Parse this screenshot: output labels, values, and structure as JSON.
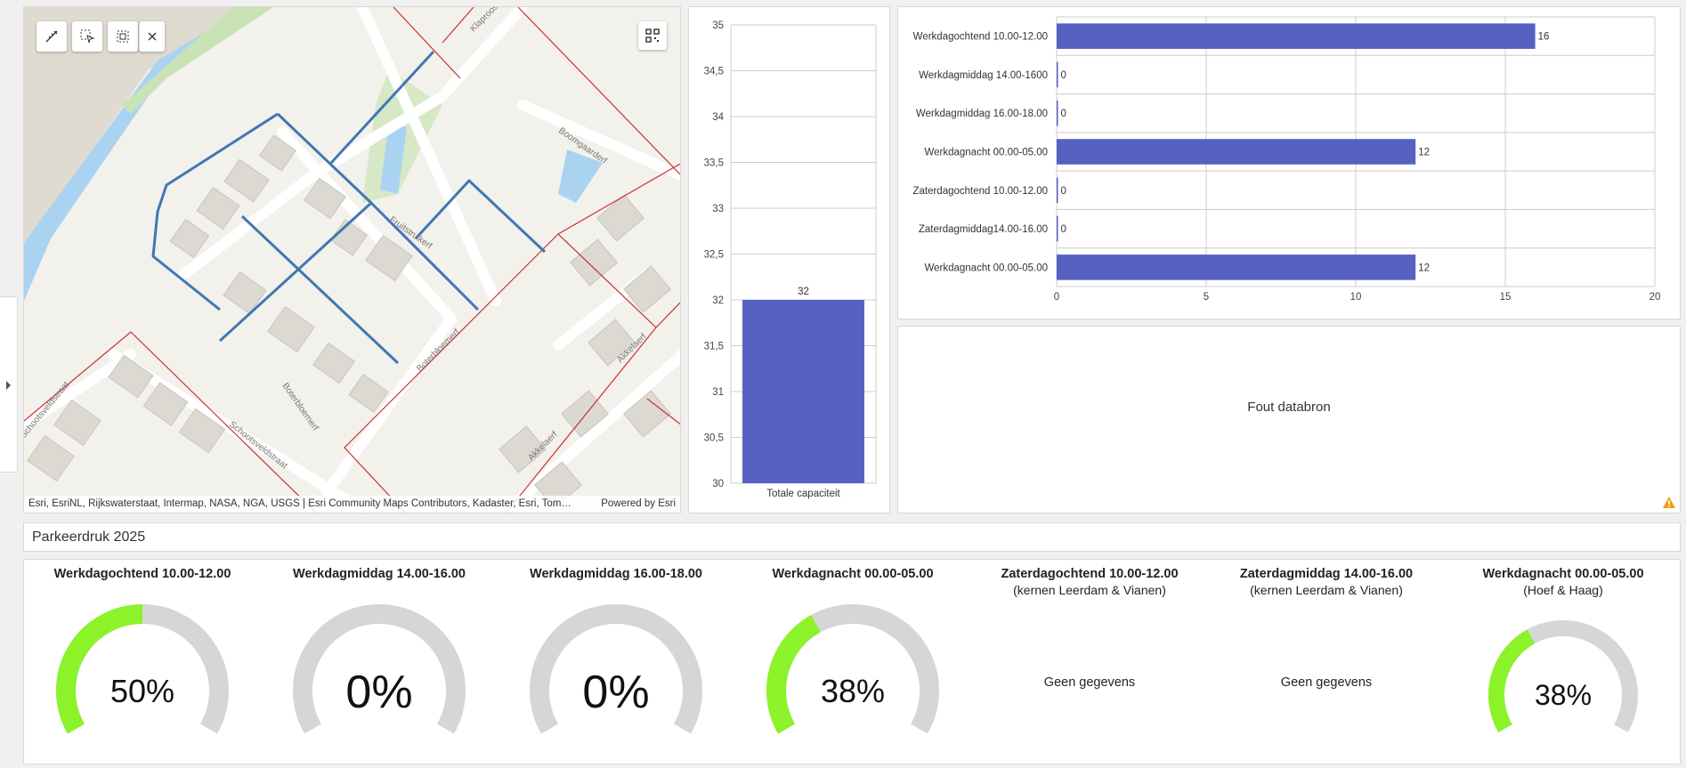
{
  "map": {
    "attribution": "Esri, EsriNL, Rijkswaterstaat, Intermap, NASA, NGA, USGS | Esri Community Maps Contributors, Kadaster, Esri, Tom…",
    "powered_by": "Powered by Esri",
    "street_labels": [
      "Klaproos",
      "Boomgaarderf",
      "Fruitstruikerf",
      "Schootsveldstraat",
      "Schootsveldstraat",
      "Boterbloemerf",
      "Boterbloemerf",
      "Akkelaerf",
      "Akkelaerf"
    ],
    "tools": [
      "measure-icon",
      "select-icon",
      "select-area-icon",
      "close-icon"
    ],
    "widget": "qr-code-icon"
  },
  "capacity_chart": {
    "chart_data": {
      "type": "bar",
      "categories": [
        "Totale capaciteit"
      ],
      "values": [
        32
      ],
      "data_labels": [
        "32"
      ],
      "ylim": [
        30,
        35
      ],
      "ticks": [
        "30",
        "30,5",
        "31",
        "31,5",
        "32",
        "32,5",
        "33",
        "33,5",
        "34",
        "34,5",
        "35"
      ],
      "bar_color": "#5661c1",
      "grid": true
    }
  },
  "occupancy_chart": {
    "chart_data": {
      "type": "bar",
      "orientation": "horizontal",
      "categories": [
        "Werkdagochtend 10.00-12.00",
        "Werkdagmiddag 14.00-1600",
        "Werkdagmiddag 16.00-18.00",
        "Werkdagnacht 00.00-05.00",
        "Zaterdagochtend 10.00-12.00",
        "Zaterdagmiddag14.00-16.00",
        "Werkdagnacht 00.00-05.00"
      ],
      "values": [
        16,
        0,
        0,
        12,
        0,
        0,
        12
      ],
      "data_labels": [
        "16",
        "0",
        "0",
        "12",
        "0",
        "0",
        "12"
      ],
      "xlim": [
        0,
        20
      ],
      "ticks": [
        "0",
        "5",
        "10",
        "15",
        "20"
      ],
      "bar_color": "#5661c1",
      "grid": true
    }
  },
  "error_panel": {
    "message": "Fout databron",
    "icon": "warning-icon",
    "icon_color": "#f39c12"
  },
  "section_title": "Parkeerdruk 2025",
  "gauges": [
    {
      "title": "Werkdagochtend 10.00-12.00",
      "subtitle": "",
      "value": 0.5,
      "label": "50%"
    },
    {
      "title": "Werkdagmiddag 14.00-16.00",
      "subtitle": "",
      "value": 0,
      "label": "0%"
    },
    {
      "title": "Werkdagmiddag 16.00-18.00",
      "subtitle": "",
      "value": 0,
      "label": "0%"
    },
    {
      "title": "Werkdagnacht 00.00-05.00",
      "subtitle": "",
      "value": 0.38,
      "label": "38%"
    },
    {
      "title": "Zaterdagochtend 10.00-12.00",
      "subtitle": "(kernen Leerdam & Vianen)",
      "nodata": "Geen gegevens"
    },
    {
      "title": "Zaterdagmiddag 14.00-16.00",
      "subtitle": "(kernen Leerdam & Vianen)",
      "nodata": "Geen gegevens"
    },
    {
      "title": "Werkdagnacht 00.00-05.00",
      "subtitle": "(Hoef & Haag)",
      "value": 0.38,
      "label": "38%"
    }
  ],
  "colors": {
    "gauge_fill": "#8cf22a",
    "gauge_track": "#d6d6d6",
    "bar": "#5661c1",
    "parcel_line": "#d03030",
    "route_line": "#3f78b3",
    "water": "#aad3f2"
  }
}
